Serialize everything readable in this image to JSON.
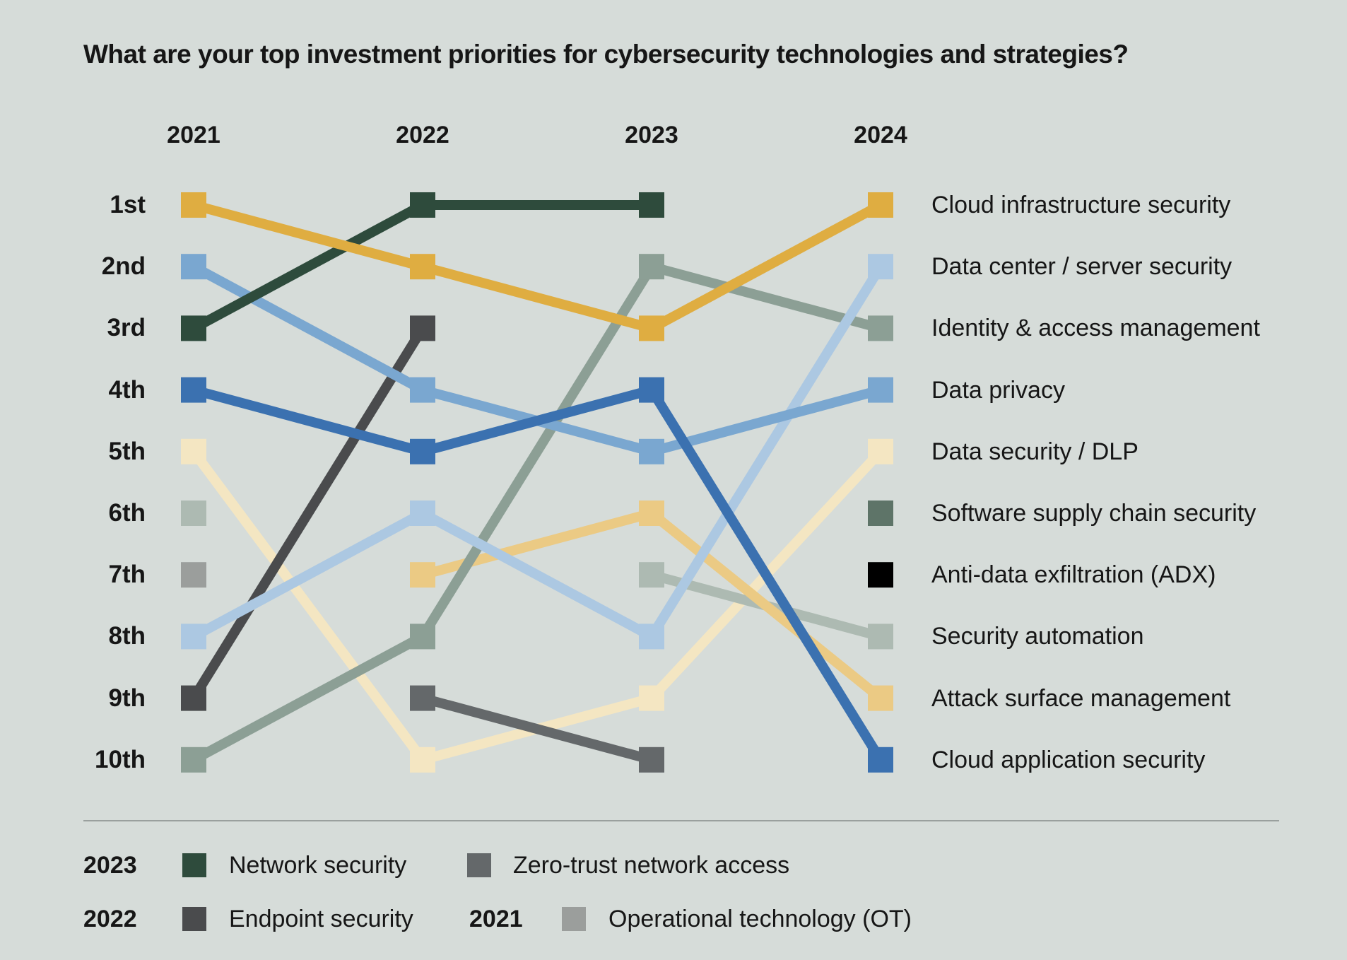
{
  "title": "What are your top investment priorities for cybersecurity technologies and strategies?",
  "colors": {
    "background": "#D6DCD9",
    "text": "#161616",
    "divider": "#9AA09E",
    "gold": "#DFAD41",
    "tan": "#EBCA84",
    "cream": "#F4E6C2",
    "dark_green": "#2E4B3C",
    "sage": "#8C9F95",
    "pale_sage": "#ADBAB2",
    "dark_sage": "#5E7468",
    "light_gray": "#9B9E9C",
    "mid_gray": "#64686A",
    "charcoal": "#4A4B4D",
    "black": "#000000",
    "pale_blue": "#ACC8E2",
    "med_blue": "#7AA7D0",
    "strong_blue": "#3B71B0"
  },
  "chart_data": {
    "type": "line",
    "subtype": "bump-ranking",
    "x": [
      2021,
      2022,
      2023,
      2024
    ],
    "x_labels": [
      "2021",
      "2022",
      "2023",
      "2024"
    ],
    "rank_labels": [
      "1st",
      "2nd",
      "3rd",
      "4th",
      "5th",
      "6th",
      "7th",
      "8th",
      "9th",
      "10th"
    ],
    "y_axis": {
      "best": 1,
      "worst": 10,
      "grid": false
    },
    "legend_position": "right-of-2024-and-bottom",
    "right_labels": [
      "Cloud infrastructure security",
      "Data center / server security",
      "Identity & access management",
      "Data privacy",
      "Data security / DLP",
      "Software supply chain security",
      "Anti-data exfiltration (ADX)",
      "Security automation",
      "Attack surface management",
      "Cloud application security"
    ],
    "series": [
      {
        "name": "Cloud infrastructure security",
        "color": "gold",
        "points": [
          {
            "year": 2021,
            "rank": 1
          },
          {
            "year": 2022,
            "rank": 2
          },
          {
            "year": 2023,
            "rank": 3
          },
          {
            "year": 2024,
            "rank": 1
          }
        ]
      },
      {
        "name": "Data center / server security",
        "color": "pale_blue",
        "points": [
          {
            "year": 2021,
            "rank": 8
          },
          {
            "year": 2022,
            "rank": 6
          },
          {
            "year": 2023,
            "rank": 8
          },
          {
            "year": 2024,
            "rank": 2
          }
        ]
      },
      {
        "name": "Identity & access management",
        "color": "sage",
        "points": [
          {
            "year": 2021,
            "rank": 10
          },
          {
            "year": 2022,
            "rank": 8
          },
          {
            "year": 2023,
            "rank": 2
          },
          {
            "year": 2024,
            "rank": 3
          }
        ]
      },
      {
        "name": "Data privacy",
        "color": "med_blue",
        "points": [
          {
            "year": 2021,
            "rank": 2
          },
          {
            "year": 2022,
            "rank": 4
          },
          {
            "year": 2023,
            "rank": 5
          },
          {
            "year": 2024,
            "rank": 4
          }
        ]
      },
      {
        "name": "Data security / DLP",
        "color": "cream",
        "points": [
          {
            "year": 2021,
            "rank": 5
          },
          {
            "year": 2022,
            "rank": 10
          },
          {
            "year": 2023,
            "rank": 9
          },
          {
            "year": 2024,
            "rank": 5
          }
        ]
      },
      {
        "name": "Software supply chain security",
        "color": "dark_sage",
        "points": [
          {
            "year": 2024,
            "rank": 6
          }
        ]
      },
      {
        "name": "Anti-data exfiltration (ADX)",
        "color": "black",
        "points": [
          {
            "year": 2024,
            "rank": 7
          }
        ]
      },
      {
        "name": "Security automation",
        "color": "pale_sage",
        "points": [
          {
            "year": 2021,
            "rank": 6
          },
          {
            "year": 2023,
            "rank": 7
          },
          {
            "year": 2024,
            "rank": 8
          }
        ]
      },
      {
        "name": "Attack surface management",
        "color": "tan",
        "points": [
          {
            "year": 2022,
            "rank": 7
          },
          {
            "year": 2023,
            "rank": 6
          },
          {
            "year": 2024,
            "rank": 9
          }
        ]
      },
      {
        "name": "Cloud application security",
        "color": "strong_blue",
        "points": [
          {
            "year": 2021,
            "rank": 4
          },
          {
            "year": 2022,
            "rank": 5
          },
          {
            "year": 2023,
            "rank": 4
          },
          {
            "year": 2024,
            "rank": 10
          }
        ]
      },
      {
        "name": "Network security",
        "color": "dark_green",
        "points": [
          {
            "year": 2021,
            "rank": 3
          },
          {
            "year": 2022,
            "rank": 1
          },
          {
            "year": 2023,
            "rank": 1
          }
        ]
      },
      {
        "name": "Zero-trust network access",
        "color": "mid_gray",
        "points": [
          {
            "year": 2022,
            "rank": 9
          },
          {
            "year": 2023,
            "rank": 10
          }
        ]
      },
      {
        "name": "Endpoint security",
        "color": "charcoal",
        "points": [
          {
            "year": 2021,
            "rank": 9
          },
          {
            "year": 2022,
            "rank": 3
          }
        ]
      },
      {
        "name": "Operational technology (OT)",
        "color": "light_gray",
        "points": [
          {
            "year": 2021,
            "rank": 7
          }
        ]
      }
    ]
  },
  "legend": {
    "row1": {
      "year": "2023",
      "item1_label": "Network security",
      "item1_color": "dark_green",
      "item2_label": "Zero-trust network access",
      "item2_color": "mid_gray"
    },
    "row2": {
      "year1": "2022",
      "item1_label": "Endpoint security",
      "item1_color": "charcoal",
      "year2": "2021",
      "item2_label": "Operational technology (OT)",
      "item2_color": "light_gray"
    }
  }
}
